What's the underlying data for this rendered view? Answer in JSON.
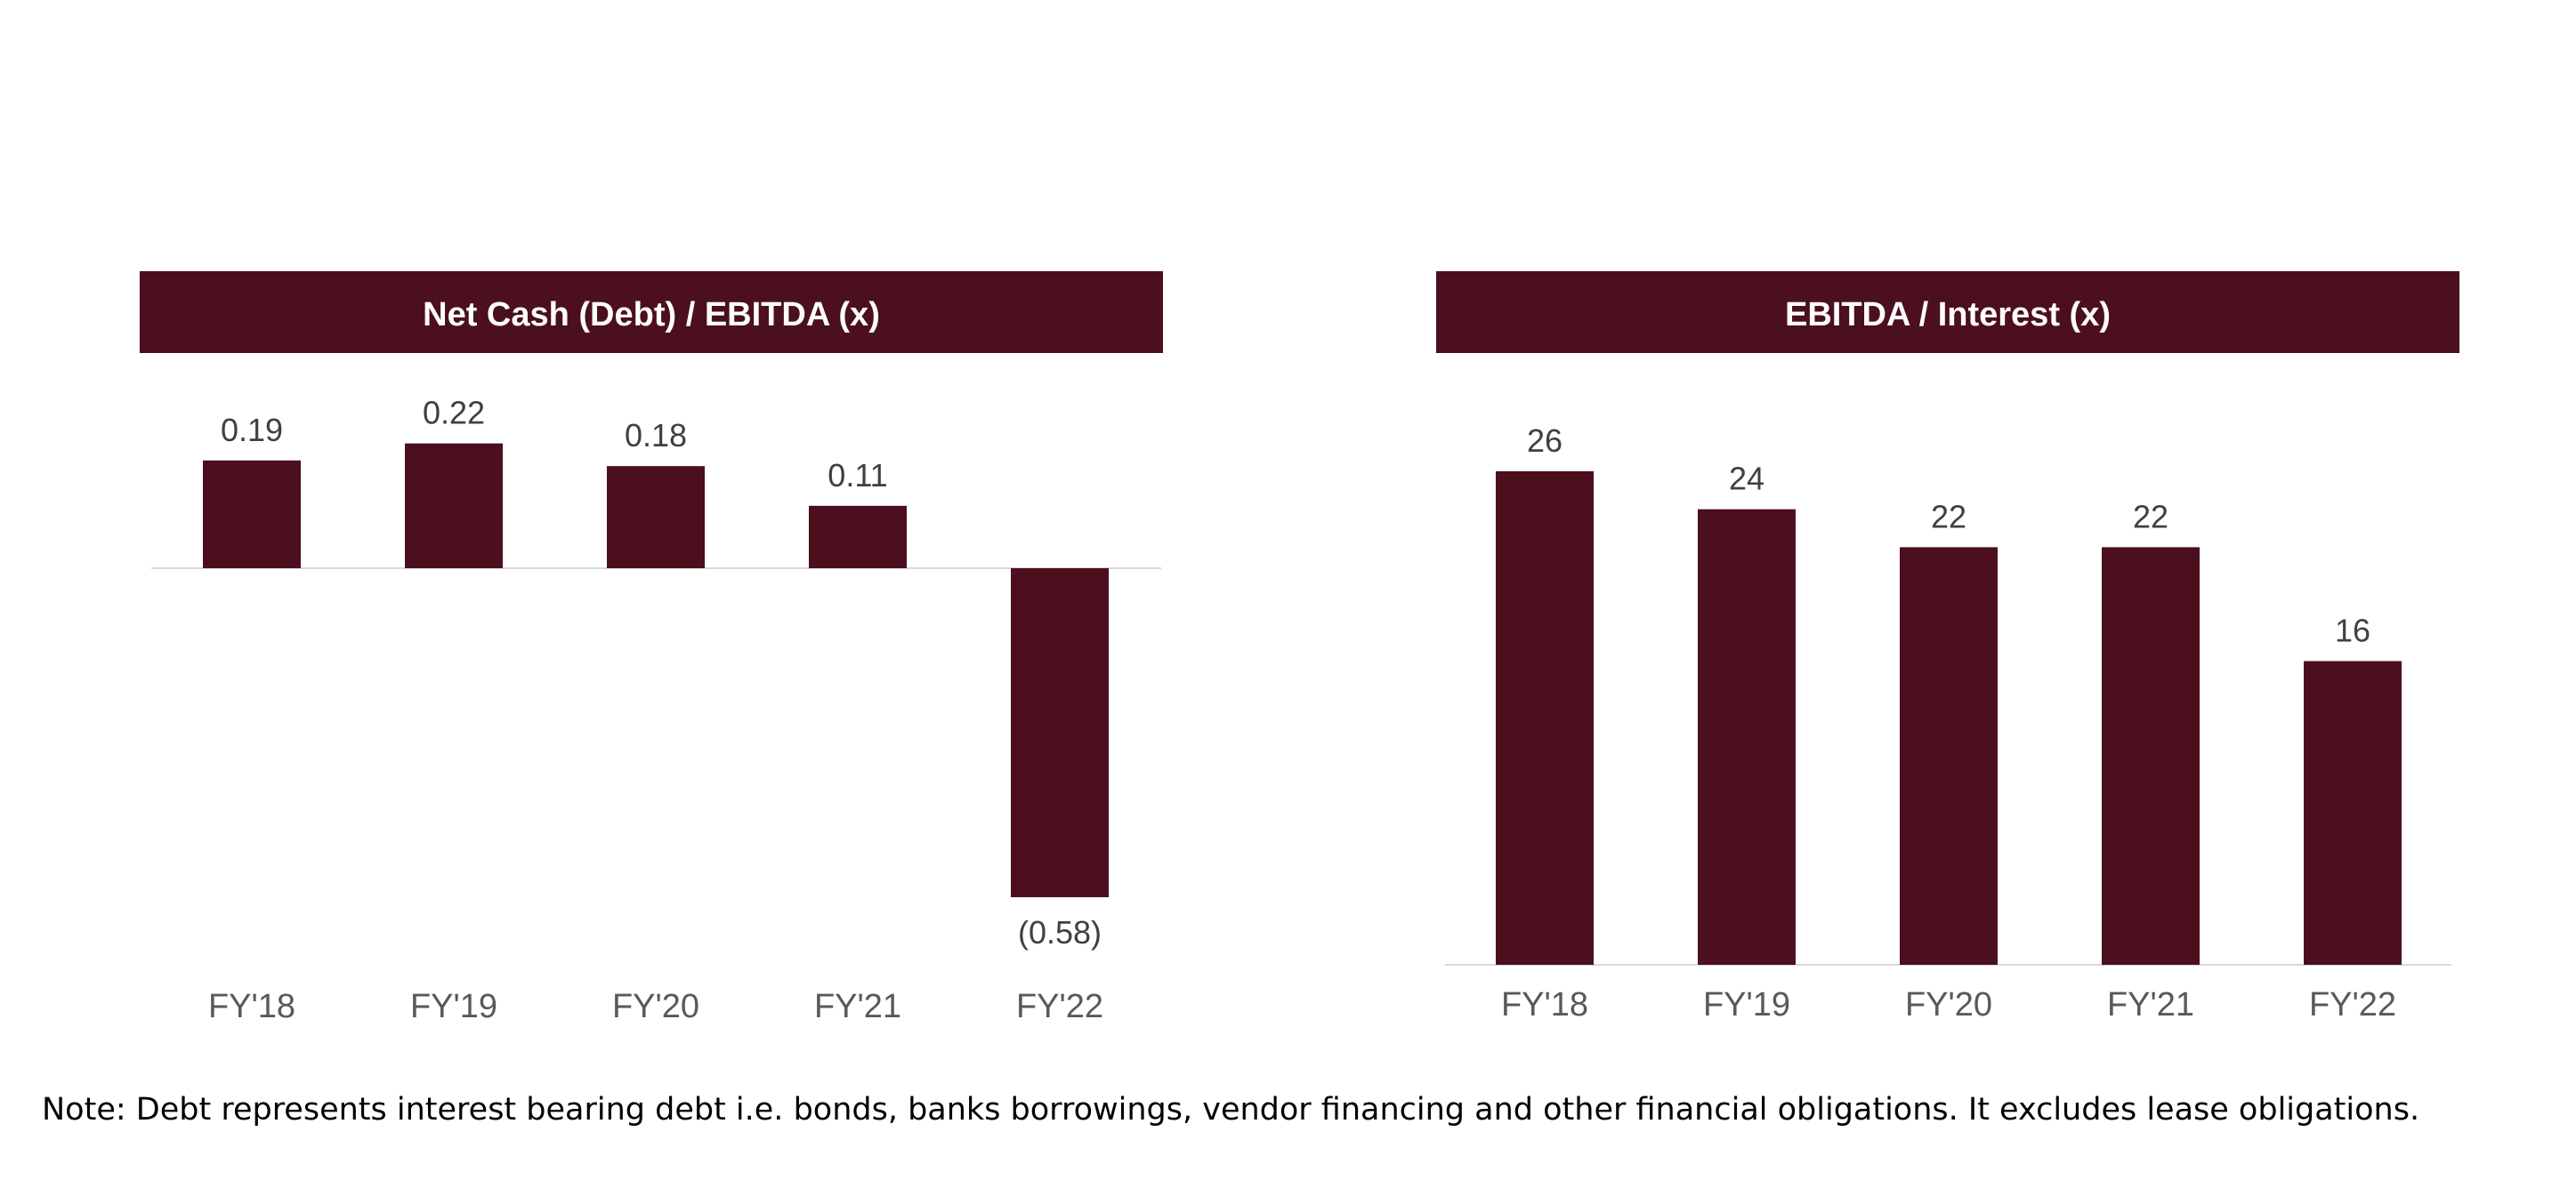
{
  "colors": {
    "bar": "#4b0f1e",
    "header": "#4b0f1e",
    "header_text": "#ffffff",
    "baseline": "#d9d9d9",
    "value_label": "#404040",
    "tick_label": "#595959"
  },
  "chart_data": [
    {
      "type": "bar",
      "title": "Net Cash (Debt) / EBITDA (x)",
      "categories": [
        "FY'18",
        "FY'19",
        "FY'20",
        "FY'21",
        "FY'22"
      ],
      "values": [
        0.19,
        0.22,
        0.18,
        0.11,
        -0.58
      ],
      "value_labels": [
        "0.19",
        "0.22",
        "0.18",
        "0.11",
        "(0.58)"
      ],
      "ylim": [
        -0.58,
        0.22
      ],
      "grid": false,
      "legend": "none"
    },
    {
      "type": "bar",
      "title": "EBITDA / Interest (x)",
      "categories": [
        "FY'18",
        "FY'19",
        "FY'20",
        "FY'21",
        "FY'22"
      ],
      "values": [
        26,
        24,
        22,
        22,
        16
      ],
      "value_labels": [
        "26",
        "24",
        "22",
        "22",
        "16"
      ],
      "ylim": [
        0,
        26
      ],
      "grid": false,
      "legend": "none"
    }
  ],
  "note": "Note: Debt represents interest bearing debt i.e. bonds, banks borrowings, vendor financing and other financial obligations. It excludes lease obligations."
}
